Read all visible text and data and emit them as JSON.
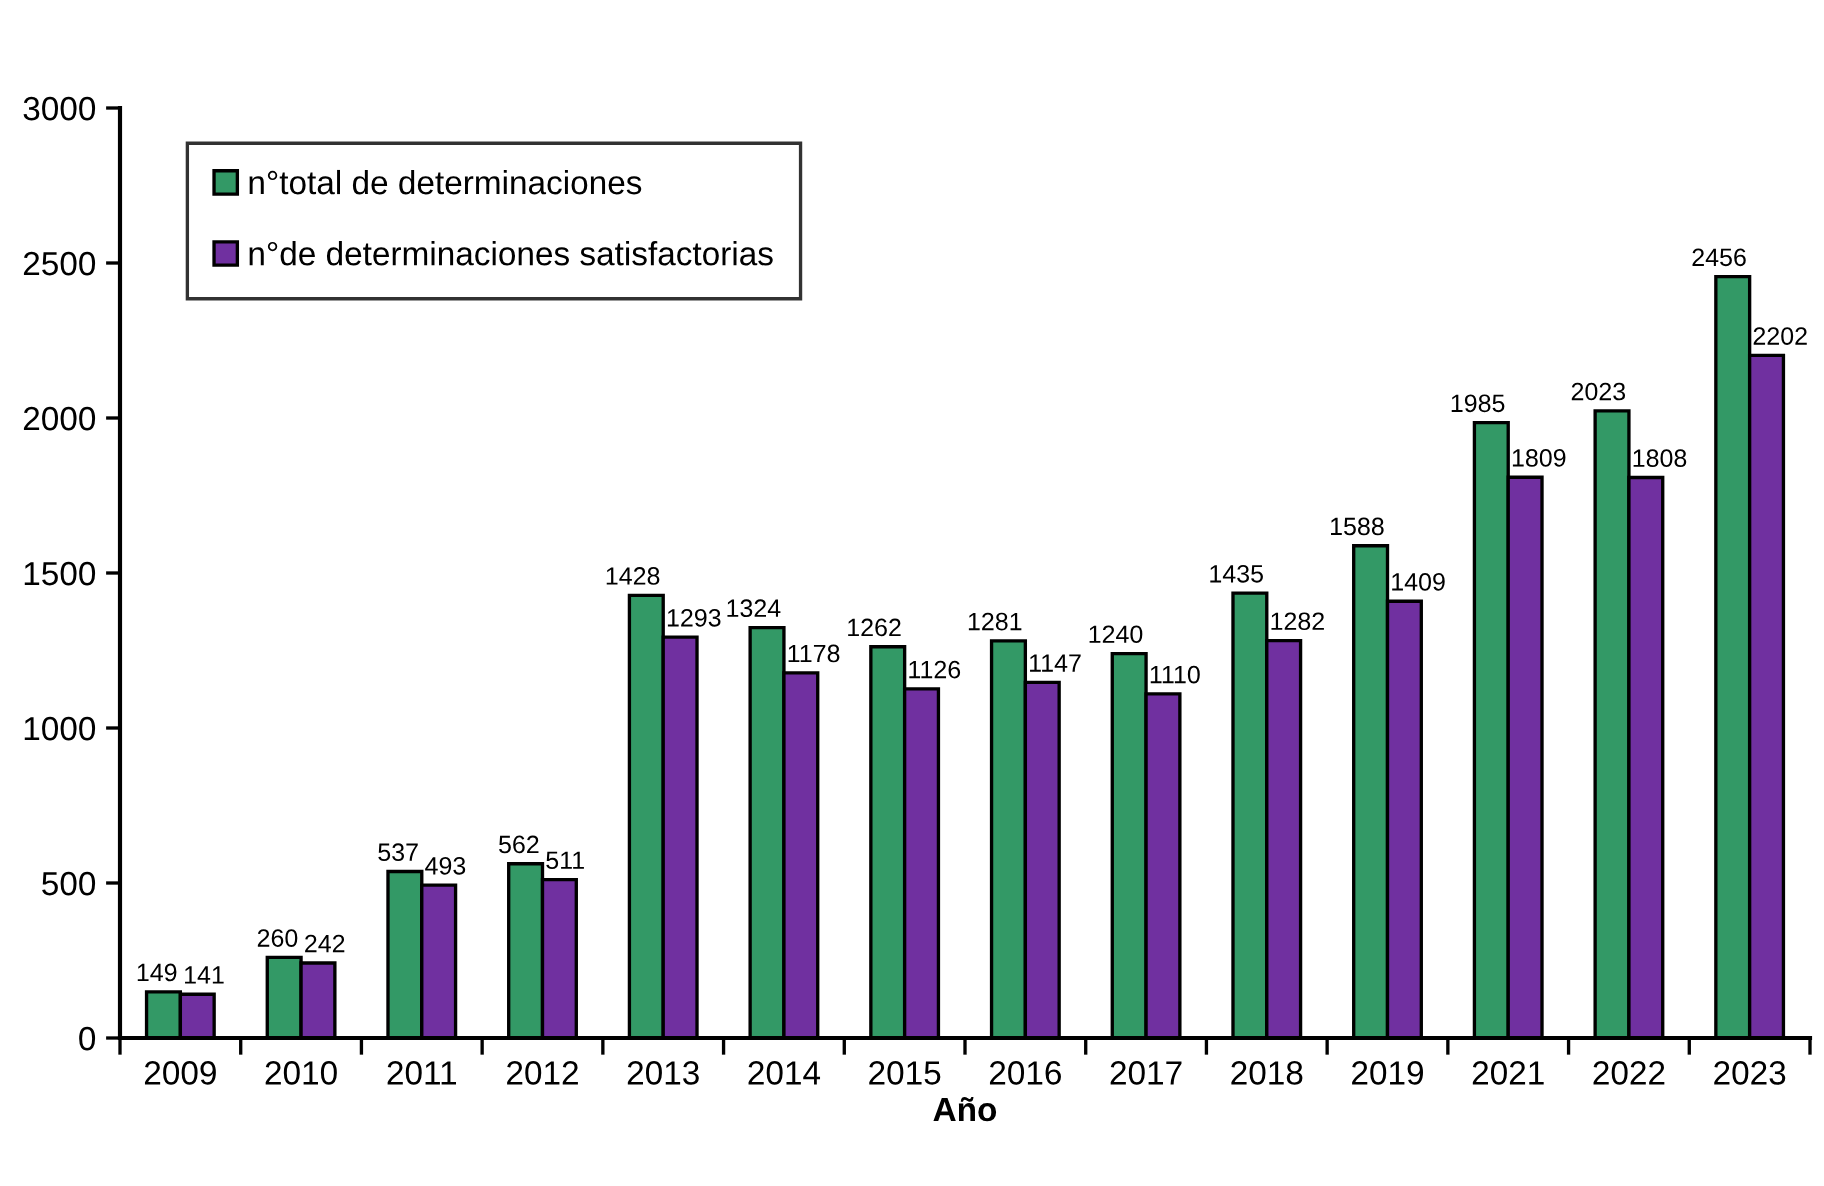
{
  "chart_data": {
    "type": "bar",
    "xlabel": "Año",
    "categories": [
      "2009",
      "2010",
      "2011",
      "2012",
      "2013",
      "2014",
      "2015",
      "2016",
      "2017",
      "2018",
      "2019",
      "2021",
      "2022",
      "2023"
    ],
    "series": [
      {
        "name": "n°total de determinaciones",
        "color": "#339966",
        "values": [
          149,
          260,
          537,
          562,
          1428,
          1324,
          1262,
          1281,
          1240,
          1435,
          1588,
          1985,
          2023,
          2456
        ]
      },
      {
        "name": "n°de determinaciones satisfactorias",
        "color": "#7030a0",
        "values": [
          141,
          242,
          493,
          511,
          1293,
          1178,
          1126,
          1147,
          1110,
          1282,
          1409,
          1809,
          1808,
          2202
        ]
      }
    ],
    "ylim": [
      0,
      3000
    ],
    "yticks": [
      0,
      500,
      1000,
      1500,
      2000,
      2500,
      3000
    ],
    "grid": false,
    "legend": "top left",
    "data_labels": true
  }
}
